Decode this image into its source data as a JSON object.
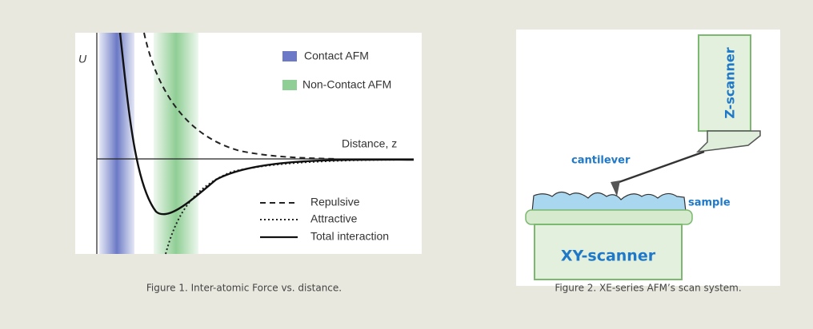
{
  "figures": [
    {
      "labels": {
        "y_axis": "U",
        "x_axis": "Distance, z",
        "contact": "Contact AFM",
        "non_contact": "Non-Contact AFM",
        "repulsive": "Repulsive",
        "attractive": "Attractive",
        "total": "Total interaction"
      },
      "caption": "Figure 1. Inter-atomic Force vs. distance."
    },
    {
      "labels": {
        "z_scanner": "Z-scanner",
        "cantilever": "cantilever",
        "sample": "sample",
        "xy_scanner": "XY-scanner"
      },
      "caption": "Figure 2. XE-series AFM’s scan system."
    }
  ]
}
